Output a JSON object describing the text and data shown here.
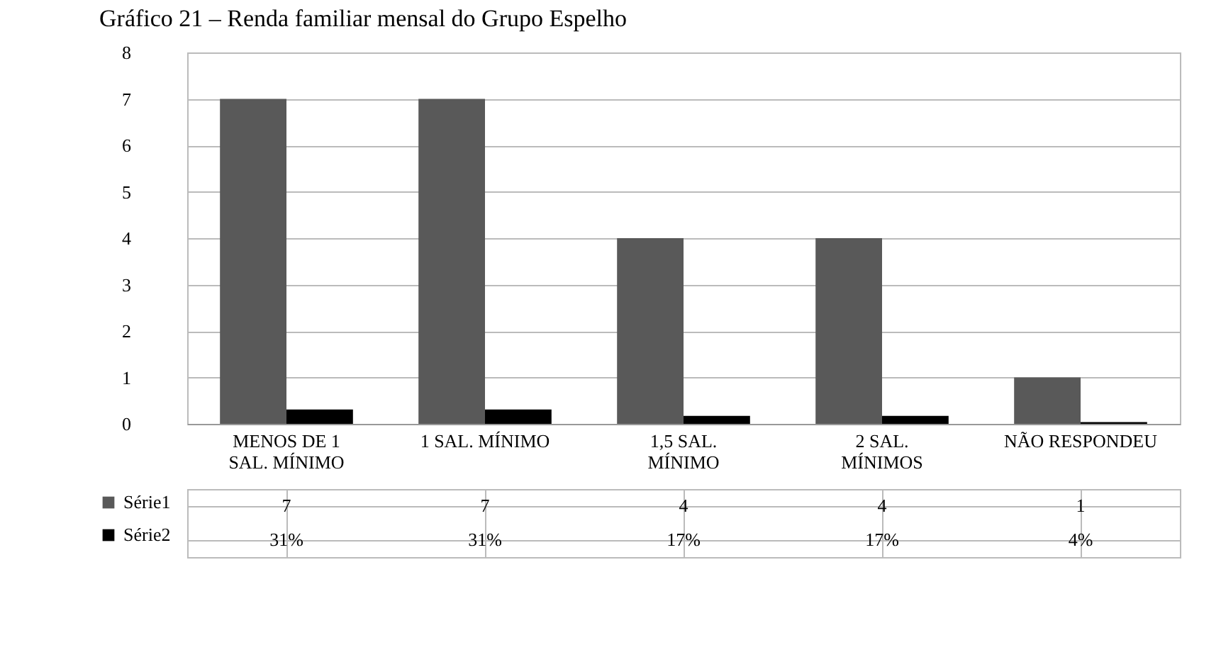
{
  "chart_data": {
    "type": "bar",
    "title": "Gráfico 21 – Renda familiar mensal do Grupo Espelho",
    "categories": [
      "MENOS DE 1 SAL. MÍNIMO",
      "1 SAL. MÍNIMO",
      "1,5 SAL. MÍNIMO",
      "2 SAL. MÍNIMOS",
      "NÃO RESPONDEU"
    ],
    "series": [
      {
        "name": "Série1",
        "color": "#595959",
        "values": [
          7,
          7,
          4,
          4,
          1
        ],
        "value_labels": [
          "7",
          "7",
          "4",
          "4",
          "1"
        ]
      },
      {
        "name": "Série2",
        "color": "#000000",
        "values": [
          0.31,
          0.31,
          0.17,
          0.17,
          0.04
        ],
        "value_labels": [
          "31%",
          "31%",
          "17%",
          "17%",
          "4%"
        ]
      }
    ],
    "ylim": [
      0,
      8
    ],
    "yticks": [
      0,
      1,
      2,
      3,
      4,
      5,
      6,
      7,
      8
    ],
    "grid": "y",
    "legend": "bottom"
  }
}
